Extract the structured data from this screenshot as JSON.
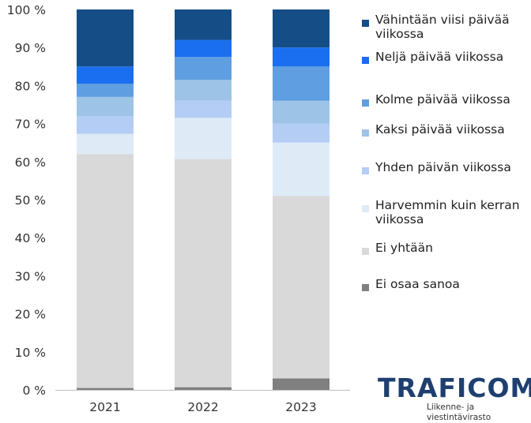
{
  "chart_data": {
    "type": "bar",
    "stacked": true,
    "categories": [
      "2021",
      "2022",
      "2023"
    ],
    "ylim": [
      0,
      100
    ],
    "yticks": [
      "0 %",
      "10 %",
      "20 %",
      "30 %",
      "40 %",
      "50 %",
      "60 %",
      "70 %",
      "80 %",
      "90 %",
      "100 %"
    ],
    "grid": false,
    "legend_position": "right",
    "series": [
      {
        "name": "Ei osaa sanoa",
        "color": "#7f7f7f",
        "values": [
          0.5,
          0.7,
          3.0
        ]
      },
      {
        "name": "Ei yhtään",
        "color": "#d9d9d9",
        "values": [
          61.5,
          60.0,
          48.0
        ]
      },
      {
        "name": "Harvemmin kuin kerran viikossa",
        "color": "#deebf7",
        "values": [
          5.3,
          10.8,
          14.0
        ]
      },
      {
        "name": "Yhden päivän viikossa",
        "color": "#b4cdf5",
        "values": [
          4.7,
          4.5,
          5.0
        ]
      },
      {
        "name": "Kaksi päivää viikossa",
        "color": "#9dc3e6",
        "values": [
          5.0,
          5.5,
          6.0
        ]
      },
      {
        "name": "Kolme päivää viikossa",
        "color": "#5f9ee0",
        "values": [
          3.5,
          6.0,
          9.0
        ]
      },
      {
        "name": "Neljä päivää viikossa",
        "color": "#1a6ef0",
        "values": [
          4.5,
          4.5,
          5.0
        ]
      },
      {
        "name": "Vähintään viisi päivää viikossa",
        "color": "#154e87",
        "values": [
          15.0,
          8.0,
          10.0
        ]
      }
    ]
  },
  "branding": {
    "logo": "TRAFICOM",
    "subtitle": "Liikenne- ja viestintävirasto"
  }
}
